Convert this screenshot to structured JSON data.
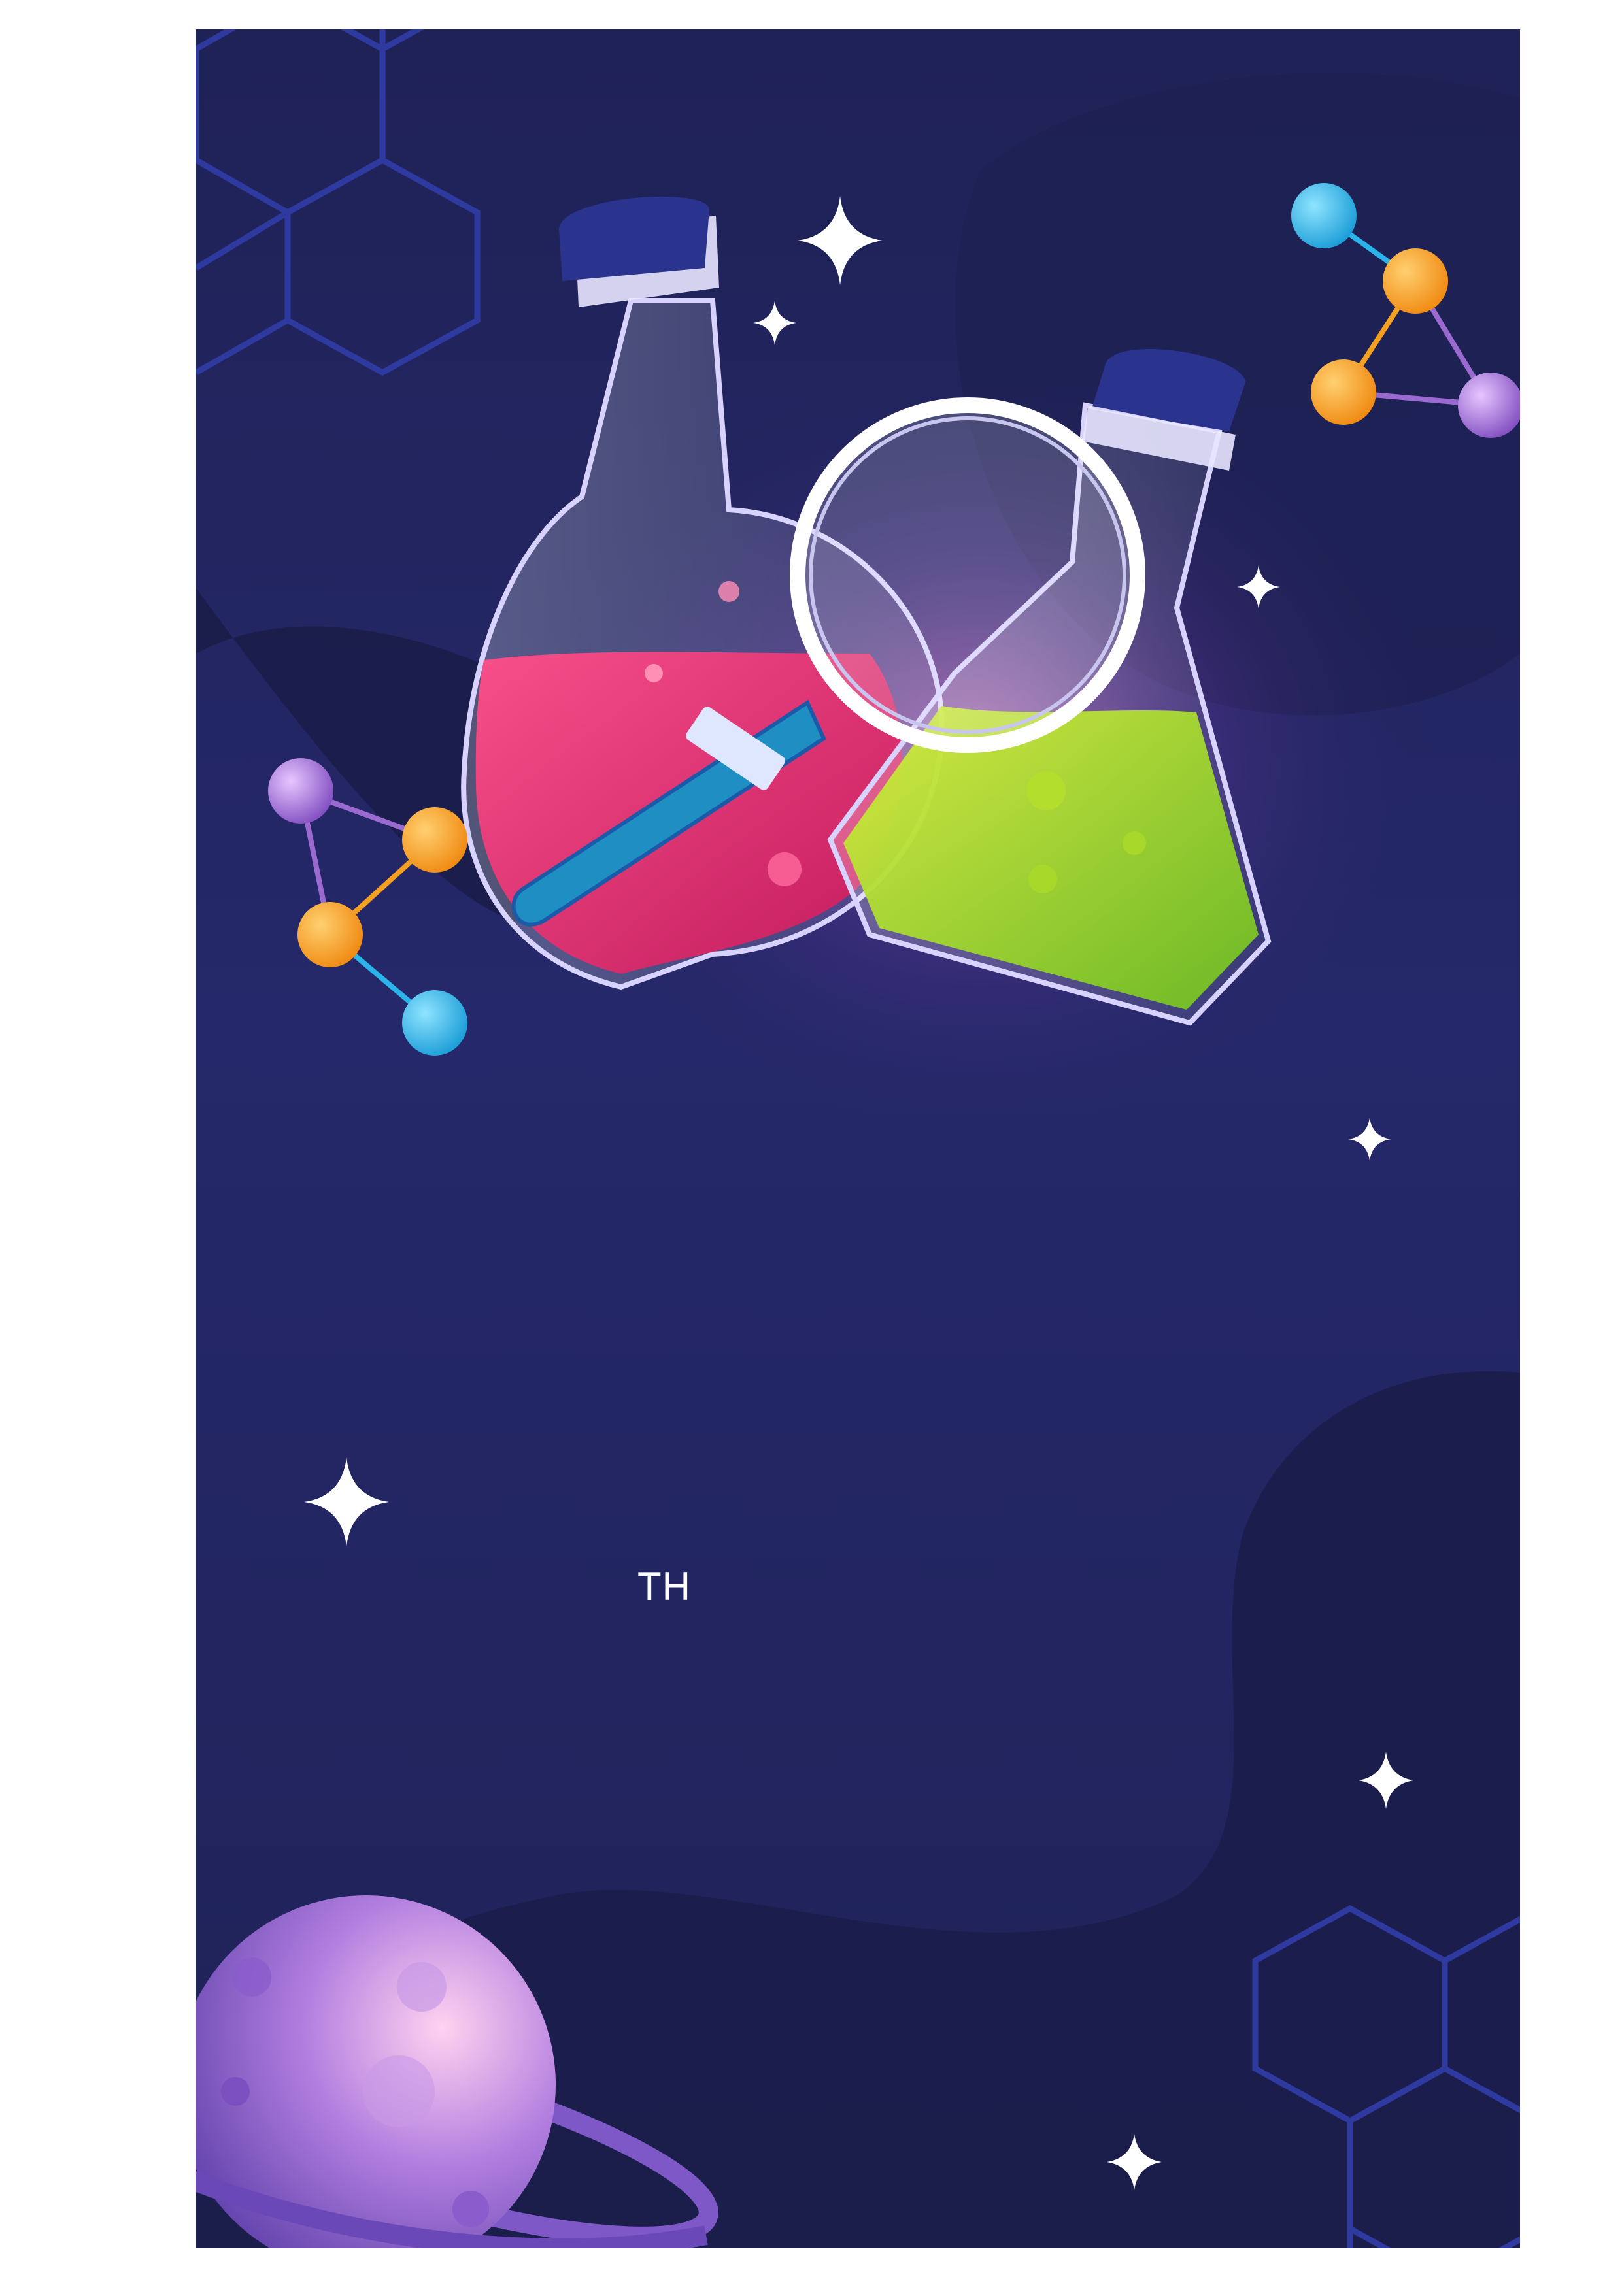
{
  "poster": {
    "label": "TH"
  },
  "colors": {
    "background": "#22245e",
    "background_dark": "#1b1d4c",
    "hexagon_stroke": "#2f3aa0",
    "flask_pink": "#e0306a",
    "flask_green": "#8fcf1e",
    "stopper_blue": "#2a348f",
    "atom_orange": "#f5a020",
    "atom_blue": "#2bb4ea",
    "atom_purple": "#9a6ad0",
    "planet_purple": "#a478d8",
    "sparkle": "#ffffff"
  },
  "icons": [
    "hexagon-pattern",
    "round-bottom-flask",
    "erlenmeyer-flask",
    "magnifying-glass",
    "molecule",
    "planet",
    "sparkle-star"
  ]
}
